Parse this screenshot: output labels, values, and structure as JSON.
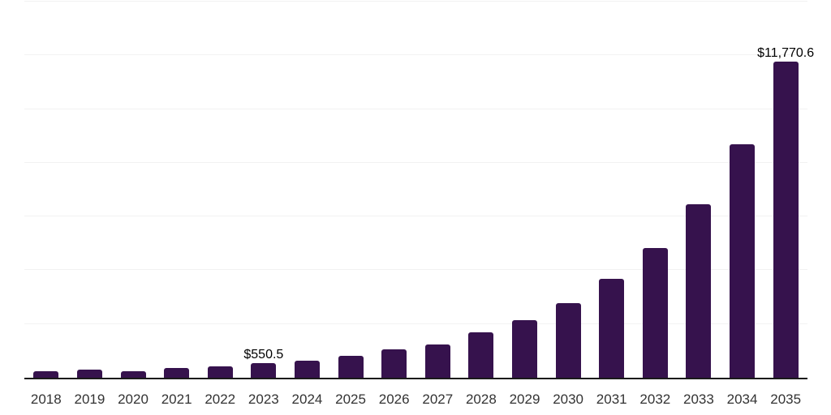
{
  "chart_data": {
    "type": "bar",
    "title": "",
    "xlabel": "",
    "ylabel": "",
    "categories": [
      "2018",
      "2019",
      "2020",
      "2021",
      "2022",
      "2023",
      "2024",
      "2025",
      "2026",
      "2027",
      "2028",
      "2029",
      "2030",
      "2031",
      "2032",
      "2033",
      "2034",
      "2035"
    ],
    "values": [
      240,
      300,
      240,
      360,
      420,
      550.5,
      630,
      805,
      1055,
      1240,
      1680,
      2135,
      2775,
      3670,
      4840,
      6465,
      8690,
      11770.6
    ],
    "data_labels": {
      "2023": "$550.5",
      "2035": "$11,770.6"
    },
    "ylim": [
      0,
      14000
    ],
    "gridline_step": 2000,
    "grid": "horizontal-only",
    "legend": "none",
    "colors": {
      "bar": "#36124d",
      "axis": "#1a1a1a",
      "gridline": "#f2f2f2",
      "tick_label": "#333333",
      "data_label": "#000000",
      "background": "#ffffff"
    }
  }
}
